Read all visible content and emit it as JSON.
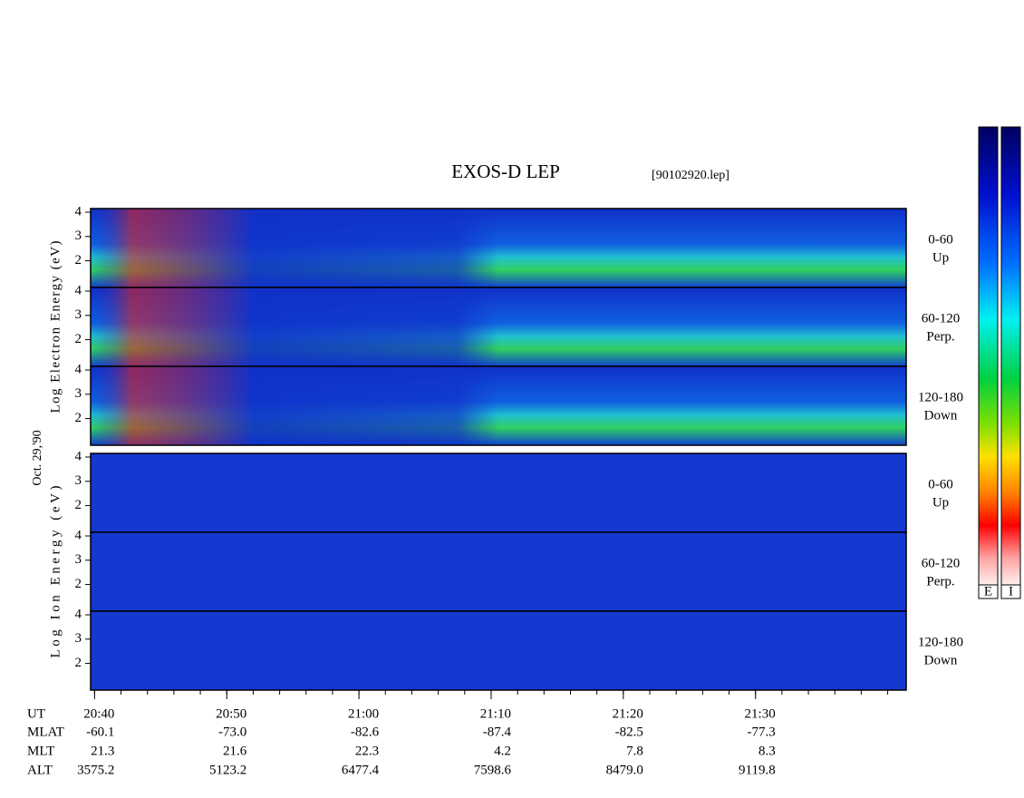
{
  "chart_data": {
    "type": "spectrogram",
    "title": "EXOS-D LEP",
    "subtitle": "[90102920.lep]",
    "date": "Oct. 29,'90",
    "groups": [
      {
        "y_label": "Log Electron Energy (eV)",
        "panels": [
          {
            "angle": "0-60",
            "direction": "Up"
          },
          {
            "angle": "60-120",
            "direction": "Perp."
          },
          {
            "angle": "120-180",
            "direction": "Down"
          }
        ]
      },
      {
        "y_label": "Log Ion Energy (eV)",
        "panels": [
          {
            "angle": "0-60",
            "direction": "Up"
          },
          {
            "angle": "60-120",
            "direction": "Perp."
          },
          {
            "angle": "120-180",
            "direction": "Down"
          }
        ]
      }
    ],
    "ylim": [
      0.9,
      4.15
    ],
    "yticks": [
      2,
      3,
      4
    ],
    "xlim": [
      1239.7,
      1301.4
    ],
    "xticks": [
      {
        "value": 1240,
        "label": "20:40"
      },
      {
        "value": 1250,
        "label": "20:50"
      },
      {
        "value": 1260,
        "label": "21:00"
      },
      {
        "value": 1270,
        "label": "21:10"
      },
      {
        "value": 1280,
        "label": "21:20"
      },
      {
        "value": 1290,
        "label": "21:30"
      }
    ],
    "x_row_name": "UT",
    "ephemeris": [
      {
        "name": "MLAT",
        "values": [
          "-60.1",
          "-73.0",
          "-82.6",
          "-87.4",
          "-82.5",
          "-77.3"
        ]
      },
      {
        "name": "MLT",
        "values": [
          "21.3",
          "21.6",
          "22.3",
          "4.2",
          "7.8",
          "8.3"
        ]
      },
      {
        "name": "ALT",
        "values": [
          "3575.2",
          "5123.2",
          "6477.4",
          "7598.6",
          "8479.0",
          "9119.8"
        ]
      }
    ],
    "colorbar_labels": [
      "E",
      "I"
    ]
  }
}
